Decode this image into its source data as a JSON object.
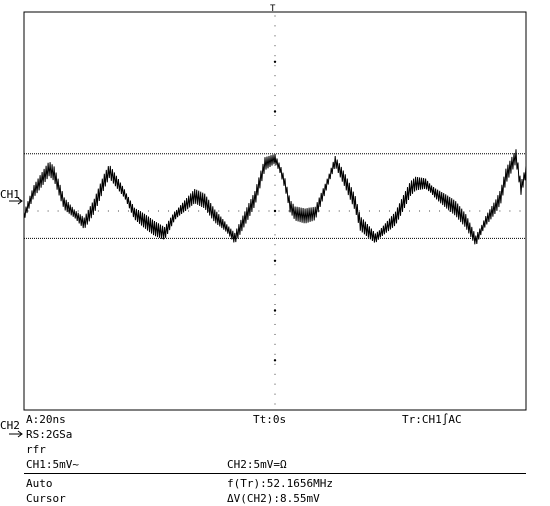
{
  "chart_data": {
    "type": "line",
    "title": "",
    "xlabel": "",
    "ylabel": "",
    "x_divisions": 10,
    "y_divisions": 8,
    "xlim": [
      0,
      10
    ],
    "ylim": [
      -4,
      4
    ],
    "grid": true,
    "cursor_levels_div": [
      1.15,
      -0.55
    ],
    "channel_markers": {
      "ch1_label": "CH1",
      "ch1_level_div": 0.2,
      "ch2_label": "CH2"
    },
    "trigger_marker": "T",
    "series": [
      {
        "name": "CH1",
        "x": [
          0.0,
          0.2,
          0.4,
          0.5,
          0.6,
          0.7,
          0.8,
          1.0,
          1.2,
          1.4,
          1.6,
          1.7,
          1.8,
          2.0,
          2.2,
          2.4,
          2.6,
          2.8,
          3.0,
          3.2,
          3.4,
          3.6,
          3.8,
          4.0,
          4.2,
          4.4,
          4.6,
          4.8,
          5.0,
          5.1,
          5.2,
          5.3,
          5.4,
          5.6,
          5.8,
          6.0,
          6.2,
          6.4,
          6.6,
          6.7,
          6.8,
          7.0,
          7.2,
          7.4,
          7.6,
          7.7,
          7.8,
          8.0,
          8.2,
          8.4,
          8.6,
          8.8,
          9.0,
          9.2,
          9.4,
          9.5,
          9.6,
          9.8,
          9.9,
          10.0
        ],
        "values": [
          -0.1,
          0.4,
          0.7,
          0.85,
          0.75,
          0.45,
          0.15,
          -0.05,
          -0.25,
          0.1,
          0.6,
          0.8,
          0.65,
          0.35,
          -0.05,
          -0.2,
          -0.35,
          -0.45,
          -0.1,
          0.1,
          0.3,
          0.2,
          -0.1,
          -0.3,
          -0.55,
          -0.15,
          0.25,
          0.95,
          1.05,
          0.85,
          0.55,
          0.1,
          -0.05,
          -0.1,
          -0.05,
          0.45,
          1.0,
          0.6,
          0.15,
          -0.25,
          -0.35,
          -0.55,
          -0.35,
          -0.15,
          0.25,
          0.45,
          0.55,
          0.55,
          0.35,
          0.2,
          0.05,
          -0.2,
          -0.6,
          -0.2,
          0.1,
          0.3,
          0.7,
          1.1,
          0.45,
          0.8
        ]
      }
    ]
  },
  "readout": {
    "timebase": "A:20ns",
    "trigger_time": "Tt:0s",
    "trigger_source": "Tr:CH1∫AC",
    "sample_rate": "RS:2GSa",
    "mode_rfr": "rfr",
    "ch1_scale": "CH1:5mV~",
    "ch2_scale": "CH2:5mV=Ω",
    "auto_label": "Auto",
    "frequency": "f(Tr):52.1656MHz",
    "cursor_label": "Cursor",
    "cursor_delta": "ΔV(CH2):8.55mV"
  }
}
